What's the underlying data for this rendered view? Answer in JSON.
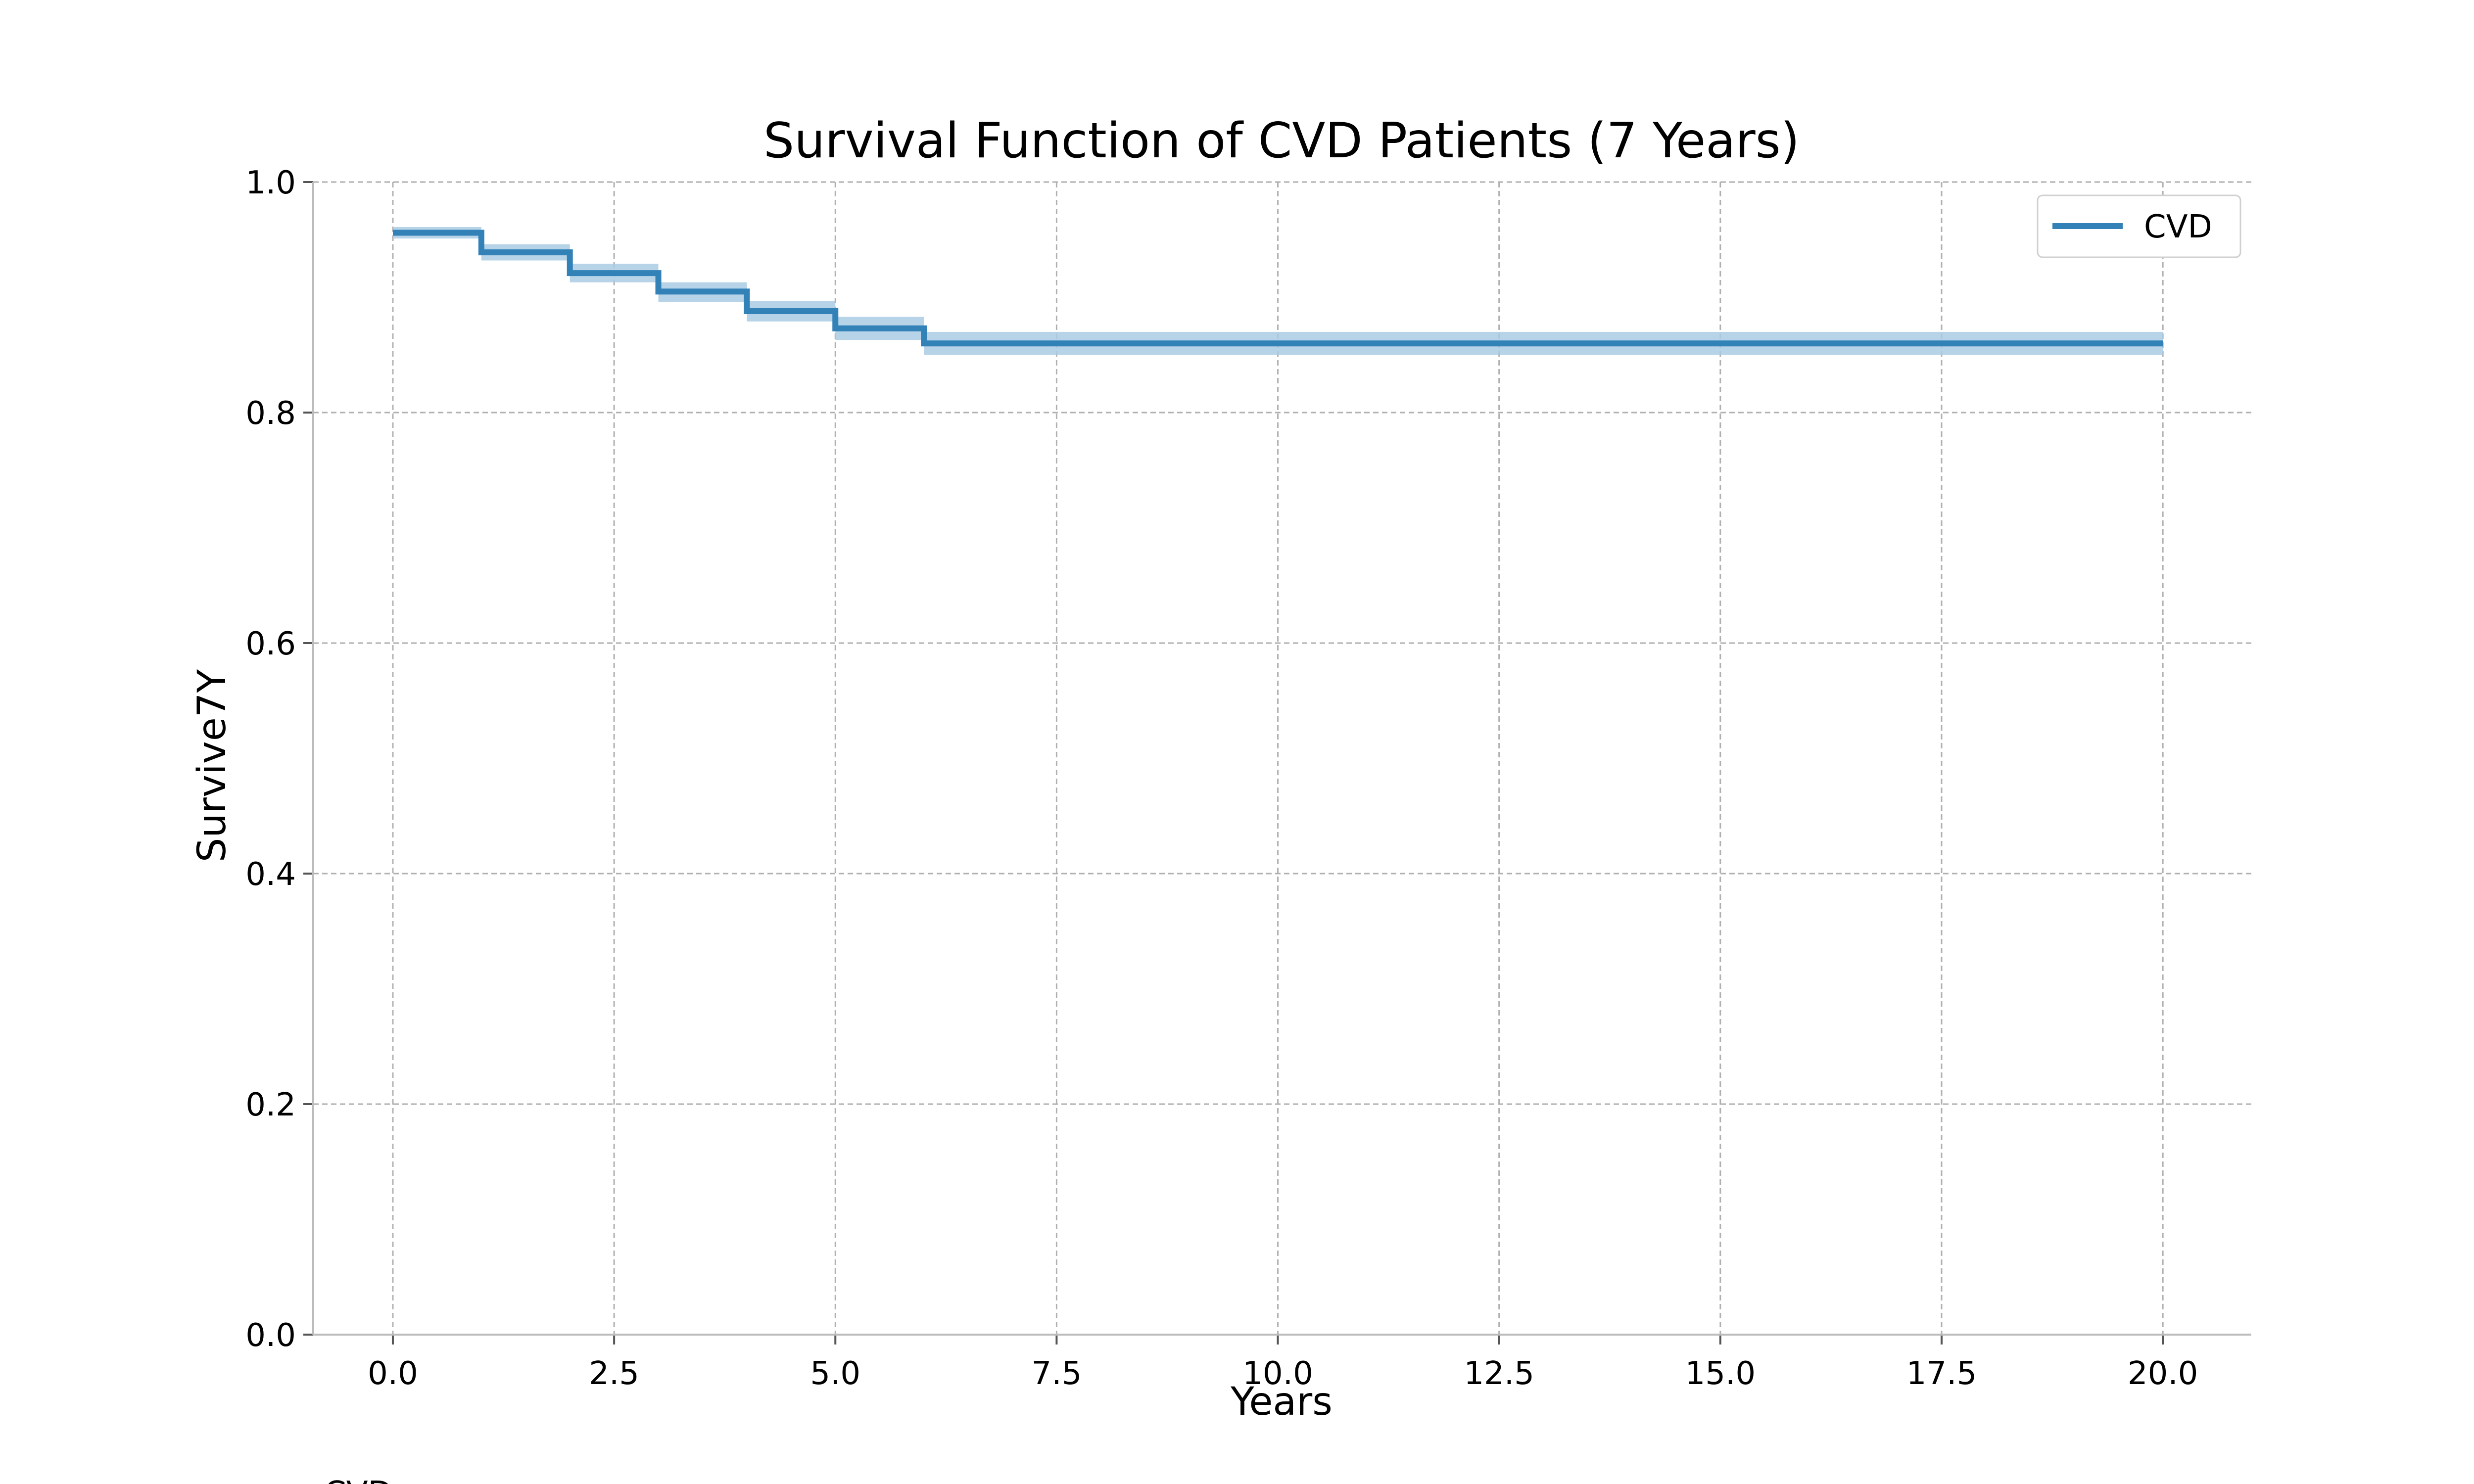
{
  "chart_data": {
    "type": "line",
    "title": "Survival Function of CVD Patients (7 Years)",
    "xlabel": "Years",
    "ylabel": "Survive7Y",
    "xlim": [
      -0.9,
      21.0
    ],
    "ylim": [
      0.0,
      1.0
    ],
    "xticks": [
      "0.0",
      "2.5",
      "5.0",
      "7.5",
      "10.0",
      "12.5",
      "15.0",
      "17.5",
      "20.0"
    ],
    "yticks": [
      "0.0",
      "0.2",
      "0.4",
      "0.6",
      "0.8",
      "1.0"
    ],
    "grid": true,
    "legend_position": "top-right",
    "step": "post",
    "series": [
      {
        "name": "CVD",
        "color": "#3282b8",
        "band_color": "#a9cbe3",
        "x": [
          0,
          1,
          2,
          3,
          4,
          5,
          6,
          20
        ],
        "y": [
          0.956,
          0.939,
          0.921,
          0.905,
          0.888,
          0.873,
          0.86,
          0.86
        ],
        "ci_lower": [
          0.951,
          0.932,
          0.913,
          0.896,
          0.879,
          0.863,
          0.85,
          0.85
        ],
        "ci_upper": [
          0.961,
          0.946,
          0.929,
          0.913,
          0.897,
          0.883,
          0.87,
          0.87
        ]
      }
    ],
    "footer_text": "CVD"
  }
}
